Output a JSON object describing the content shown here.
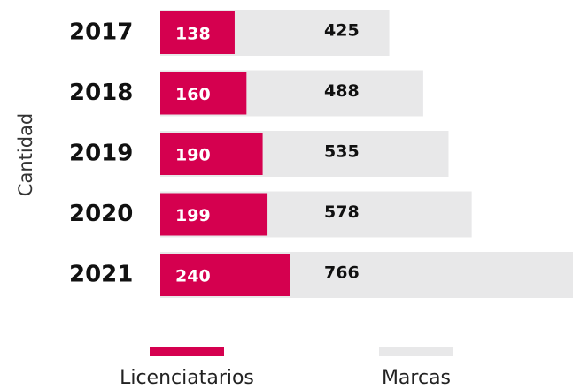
{
  "chart_data": {
    "type": "bar",
    "orientation": "horizontal",
    "overlap": true,
    "y_axis_label": "Cantidad",
    "categories": [
      "2017",
      "2018",
      "2019",
      "2020",
      "2021"
    ],
    "series": [
      {
        "name": "Marcas",
        "color": "#e8e8e9",
        "label_color": "#111111",
        "values": [
          425,
          488,
          535,
          578,
          766
        ]
      },
      {
        "name": "Licenciatarios",
        "color": "#d5004f",
        "label_color": "#ffffff",
        "values": [
          138,
          160,
          190,
          199,
          240
        ]
      }
    ],
    "xlim": [
      0,
      766
    ]
  }
}
